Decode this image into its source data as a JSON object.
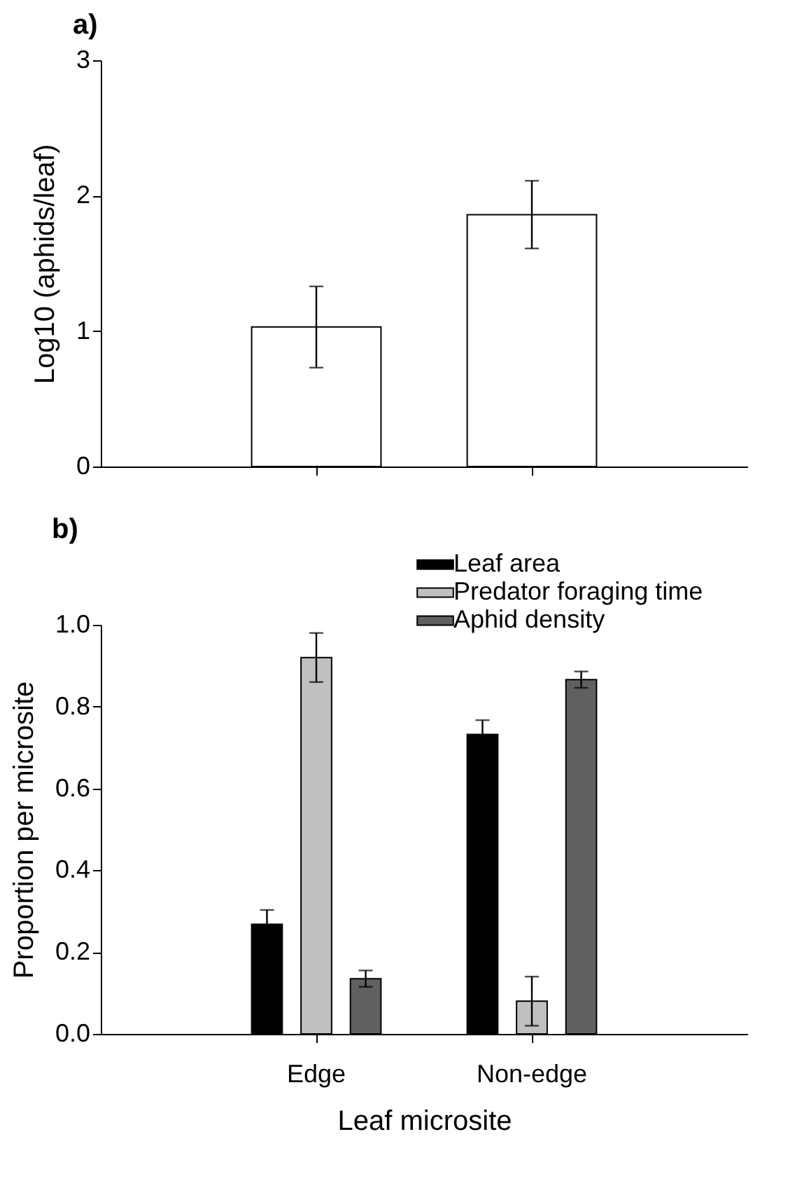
{
  "chart_data": [
    {
      "type": "bar",
      "title": "a)",
      "ylabel": "Log10 (aphids/leaf)",
      "categories": [
        null,
        null
      ],
      "values": [
        1.03,
        1.86
      ],
      "errors": [
        0.3,
        0.25
      ],
      "color": "#ffffff",
      "ylim": [
        0,
        3
      ],
      "yticks": [
        0,
        1,
        2,
        3
      ],
      "tick_labels": "y"
    },
    {
      "type": "bar",
      "title": "b)",
      "xlabel": "Leaf microsite",
      "ylabel": "Proportion per microsite",
      "categories": [
        "Edge",
        "Non-edge"
      ],
      "series": [
        {
          "name": "Leaf area",
          "color": "#000000",
          "values": [
            0.268,
            0.732
          ],
          "errors": [
            0.035,
            0.035
          ]
        },
        {
          "name": "Predator foraging time",
          "color": "#c0c0c0",
          "values": [
            0.92,
            0.08
          ],
          "errors": [
            0.06,
            0.06
          ]
        },
        {
          "name": "Aphid density",
          "color": "#606060",
          "values": [
            0.135,
            0.866
          ],
          "errors": [
            0.02,
            0.02
          ]
        }
      ],
      "ylim": [
        0,
        1
      ],
      "yticks": [
        {
          "value": 0,
          "label": "0.0"
        },
        {
          "value": 0.2,
          "label": "0.2"
        },
        {
          "value": 0.4,
          "label": "0.4"
        },
        {
          "value": 0.6,
          "label": "0.6"
        },
        {
          "value": 0.8,
          "label": "0.8"
        },
        {
          "value": 1,
          "label": "1.0"
        }
      ],
      "legend": "top right"
    }
  ]
}
